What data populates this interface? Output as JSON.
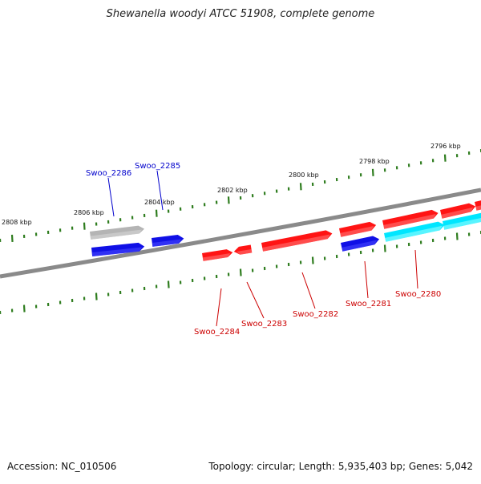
{
  "title": "Shewanella woodyi ATCC 51908, complete genome",
  "footer": {
    "accession": "Accession: NC_010506",
    "summary": "Topology: circular; Length: 5,935,403 bp; Genes: 5,042"
  },
  "colors": {
    "backbone": "#8a8a8a",
    "tick": "#2f7d1f",
    "forward_gene": "#ff1414",
    "reverse_gene": "#1010e6",
    "highlight_gene": "#00e6ff",
    "pseudo_gene": "#b4b4b4",
    "label_forward": "#cc0000",
    "label_reverse": "#0000cc"
  },
  "scale_labels": [
    "2808 kbp",
    "2806 kbp",
    "2804 kbp",
    "2802 kbp",
    "2800 kbp",
    "2798 kbp",
    "2796 kbp"
  ],
  "gene_labels": {
    "top": [
      "Swoo_2286",
      "Swoo_2285"
    ],
    "bottom": [
      "Swoo_2284",
      "Swoo_2283",
      "Swoo_2282",
      "Swoo_2281",
      "Swoo_2280"
    ]
  }
}
